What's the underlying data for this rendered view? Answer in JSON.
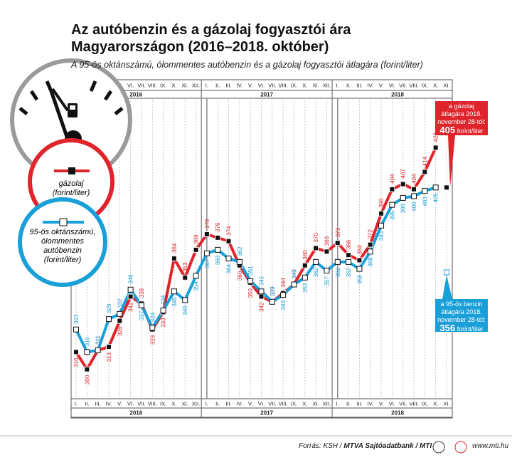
{
  "chart_data": {
    "type": "line",
    "title": "Az autóbenzin és a gázolaj fogyasztói ára Magyarországon (2016–2018. október)",
    "subtitle": "A 95-ös oktánszámú, ólommentes autóbenzin és a gázolaj fogyasztói átlagára (forint/liter)",
    "categories": [
      "I.",
      "II.",
      "III.",
      "IV.",
      "V.",
      "VI.",
      "VII.",
      "VIII.",
      "IX.",
      "X.",
      "XI.",
      "XII.",
      "I.",
      "II.",
      "III.",
      "IV.",
      "V.",
      "VI.",
      "VII.",
      "VIII.",
      "IX.",
      "X.",
      "XI.",
      "XII.",
      "I.",
      "II.",
      "III.",
      "IV.",
      "V.",
      "VI.",
      "VII.",
      "VIII.",
      "IX.",
      "X.",
      "XI."
    ],
    "years": [
      "2016",
      "2017",
      "2018"
    ],
    "ylim": [
      283,
      466
    ],
    "series": [
      {
        "name": "gázolaj",
        "unit": "(forint/liter)",
        "color": "#e0242b",
        "values": [
          310,
          300,
          311,
          313,
          328,
          342,
          338,
          323,
          333,
          364,
          353,
          369,
          378,
          376,
          374,
          360,
          350,
          342,
          339,
          344,
          349,
          360,
          370,
          368,
          373,
          366,
          363,
          372,
          390,
          404,
          407,
          404,
          414,
          428,
          null
        ]
      },
      {
        "name": "95-ös oktánszámú, ólommentes autóbenzin",
        "unit": "(forint/liter)",
        "color": "#1aa0d8",
        "values": [
          323,
          310,
          311,
          329,
          332,
          346,
          337,
          324,
          334,
          345,
          340,
          354,
          367,
          369,
          364,
          362,
          351,
          345,
          339,
          343,
          349,
          353,
          362,
          357,
          362,
          362,
          358,
          368,
          383,
          395,
          399,
          400,
          403,
          405,
          null
        ]
      }
    ],
    "annotations": [
      {
        "series": 0,
        "text": "a gázolaj átlagára 2018. november 28-tól:",
        "value": 405,
        "unit": "forint/liter"
      },
      {
        "series": 1,
        "text": "a 95-ös benzin átlagára 2018. november 28-tól:",
        "value": 356,
        "unit": "forint/liter"
      }
    ],
    "source": "Forrás: KSH /",
    "source_bold": "MTVA Sajtóadatbank / MTI",
    "site": "www.mti.hu"
  }
}
